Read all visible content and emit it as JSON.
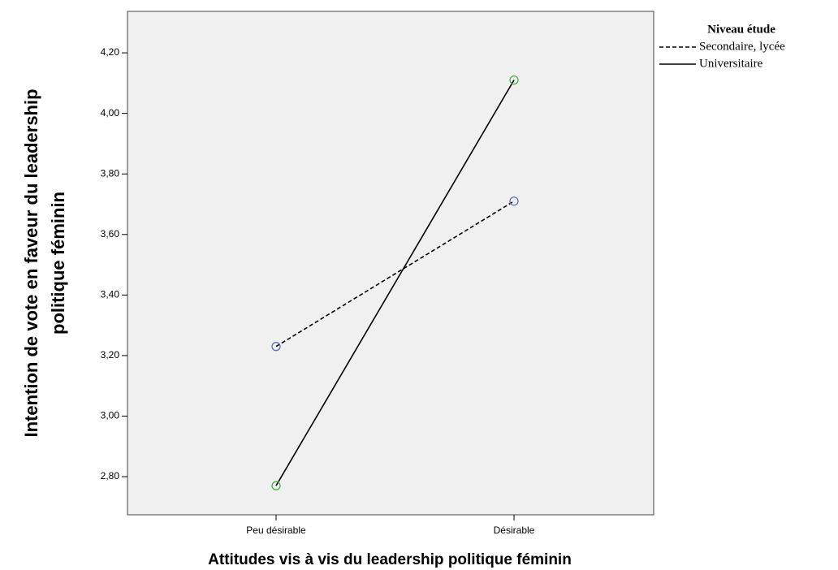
{
  "chart_data": {
    "type": "line",
    "xlabel": "Attitudes vis à vis du leadership politique féminin",
    "ylabel": [
      "Intention de vote en faveur du leadership",
      "politique féminin"
    ],
    "categories": [
      "Peu désirable",
      "Désirable"
    ],
    "legend_title": "Niveau étude",
    "legend": "outside-right",
    "series": [
      {
        "name": "Secondaire, lycée",
        "color": "#000000",
        "marker_color": "#5a6fc0",
        "dash": true,
        "values": [
          3.23,
          3.71
        ]
      },
      {
        "name": "Universitaire",
        "color": "#000000",
        "marker_color": "#48b048",
        "dash": false,
        "values": [
          2.77,
          4.11
        ]
      }
    ],
    "ylim": [
      2.674,
      4.337
    ],
    "yticks": [
      {
        "value": 2.8,
        "label": "2,80"
      },
      {
        "value": 3.0,
        "label": "3,00"
      },
      {
        "value": 3.2,
        "label": "3,20"
      },
      {
        "value": 3.4,
        "label": "3,40"
      },
      {
        "value": 3.6,
        "label": "3,60"
      },
      {
        "value": 3.8,
        "label": "3,80"
      },
      {
        "value": 4.0,
        "label": "4,00"
      },
      {
        "value": 4.2,
        "label": "4,20"
      }
    ]
  }
}
